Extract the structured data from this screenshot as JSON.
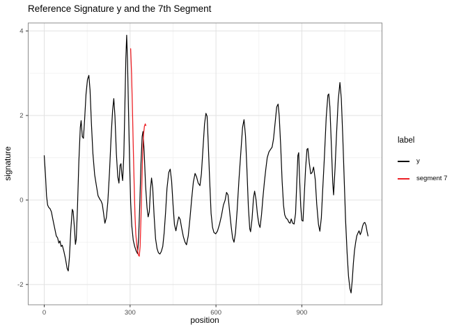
{
  "chart_data": {
    "type": "line",
    "title": "Reference Signature y and the 7th Segment",
    "xlabel": "position",
    "ylabel": "signature",
    "xlim": [
      -56,
      1180
    ],
    "ylim": [
      -2.48,
      4.19
    ],
    "x_ticks": [
      0,
      300,
      600,
      900
    ],
    "x_minor": [
      150,
      450,
      750,
      1050
    ],
    "y_ticks": [
      -2,
      0,
      2,
      4
    ],
    "y_minor": [
      -1,
      1,
      3
    ],
    "grid": "on",
    "legend_position": "right",
    "legend": {
      "title": "label",
      "entries": [
        {
          "label": "y",
          "color": "#000000"
        },
        {
          "label": "segment 7",
          "color": "#EC2025"
        }
      ]
    },
    "colors": {
      "major_grid": "#e2e2e2",
      "minor_grid": "#f0f0f0",
      "panel_border": "#8c8c8c",
      "tick_mark": "#333333",
      "tick_label": "#4d4d4d"
    },
    "series": [
      {
        "name": "y",
        "color": "#000000",
        "width": 1.2,
        "points": [
          [
            0,
            1.05
          ],
          [
            4,
            0.62
          ],
          [
            8,
            0.1
          ],
          [
            12,
            -0.12
          ],
          [
            16,
            -0.18
          ],
          [
            20,
            -0.2
          ],
          [
            25,
            -0.28
          ],
          [
            30,
            -0.45
          ],
          [
            36,
            -0.65
          ],
          [
            42,
            -0.85
          ],
          [
            47,
            -0.9
          ],
          [
            51,
            -1.02
          ],
          [
            55,
            -0.97
          ],
          [
            59,
            -1.1
          ],
          [
            63,
            -1.07
          ],
          [
            68,
            -1.2
          ],
          [
            74,
            -1.38
          ],
          [
            80,
            -1.62
          ],
          [
            84,
            -1.68
          ],
          [
            88,
            -1.35
          ],
          [
            93,
            -0.7
          ],
          [
            98,
            -0.22
          ],
          [
            101,
            -0.27
          ],
          [
            105,
            -0.62
          ],
          [
            109,
            -1.05
          ],
          [
            112,
            -0.93
          ],
          [
            116,
            -0.2
          ],
          [
            121,
            0.9
          ],
          [
            126,
            1.72
          ],
          [
            129,
            1.88
          ],
          [
            133,
            1.5
          ],
          [
            137,
            1.46
          ],
          [
            141,
            1.9
          ],
          [
            146,
            2.5
          ],
          [
            151,
            2.85
          ],
          [
            156,
            2.95
          ],
          [
            160,
            2.6
          ],
          [
            165,
            1.8
          ],
          [
            170,
            1.1
          ],
          [
            176,
            0.6
          ],
          [
            182,
            0.35
          ],
          [
            188,
            0.1
          ],
          [
            194,
            0.02
          ],
          [
            199,
            -0.03
          ],
          [
            203,
            -0.1
          ],
          [
            207,
            -0.3
          ],
          [
            212,
            -0.55
          ],
          [
            217,
            -0.42
          ],
          [
            222,
            -0.05
          ],
          [
            228,
            0.65
          ],
          [
            234,
            1.55
          ],
          [
            239,
            2.12
          ],
          [
            243,
            2.4
          ],
          [
            247,
            2.0
          ],
          [
            252,
            1.1
          ],
          [
            257,
            0.55
          ],
          [
            261,
            0.4
          ],
          [
            265,
            0.82
          ],
          [
            268,
            0.86
          ],
          [
            271,
            0.62
          ],
          [
            274,
            0.46
          ],
          [
            278,
            1.05
          ],
          [
            282,
            2.3
          ],
          [
            285,
            3.35
          ],
          [
            288,
            3.9
          ],
          [
            291,
            3.3
          ],
          [
            294,
            2.2
          ],
          [
            298,
            0.95
          ],
          [
            302,
            -0.05
          ],
          [
            306,
            -0.62
          ],
          [
            311,
            -0.95
          ],
          [
            316,
            -1.1
          ],
          [
            321,
            -1.2
          ],
          [
            326,
            -1.27
          ],
          [
            330,
            -0.88
          ],
          [
            334,
            -0.05
          ],
          [
            338,
            0.85
          ],
          [
            342,
            1.5
          ],
          [
            345,
            1.62
          ],
          [
            349,
            1.15
          ],
          [
            354,
            0.35
          ],
          [
            359,
            -0.18
          ],
          [
            363,
            -0.4
          ],
          [
            367,
            -0.28
          ],
          [
            371,
            0.25
          ],
          [
            375,
            0.52
          ],
          [
            379,
            0.28
          ],
          [
            384,
            -0.38
          ],
          [
            389,
            -0.92
          ],
          [
            394,
            -1.15
          ],
          [
            399,
            -1.25
          ],
          [
            404,
            -1.28
          ],
          [
            409,
            -1.22
          ],
          [
            414,
            -1.1
          ],
          [
            419,
            -0.78
          ],
          [
            424,
            -0.28
          ],
          [
            429,
            0.28
          ],
          [
            435,
            0.65
          ],
          [
            440,
            0.73
          ],
          [
            445,
            0.45
          ],
          [
            450,
            -0.12
          ],
          [
            455,
            -0.58
          ],
          [
            460,
            -0.73
          ],
          [
            465,
            -0.55
          ],
          [
            470,
            -0.4
          ],
          [
            475,
            -0.46
          ],
          [
            480,
            -0.66
          ],
          [
            486,
            -0.87
          ],
          [
            492,
            -1.0
          ],
          [
            497,
            -1.06
          ],
          [
            503,
            -0.85
          ],
          [
            509,
            -0.45
          ],
          [
            515,
            0.02
          ],
          [
            521,
            0.42
          ],
          [
            527,
            0.63
          ],
          [
            532,
            0.55
          ],
          [
            538,
            0.4
          ],
          [
            544,
            0.34
          ],
          [
            549,
            0.62
          ],
          [
            554,
            1.15
          ],
          [
            560,
            1.8
          ],
          [
            565,
            2.05
          ],
          [
            569,
            1.98
          ],
          [
            573,
            1.35
          ],
          [
            578,
            0.45
          ],
          [
            583,
            -0.32
          ],
          [
            588,
            -0.65
          ],
          [
            593,
            -0.77
          ],
          [
            599,
            -0.8
          ],
          [
            605,
            -0.74
          ],
          [
            612,
            -0.58
          ],
          [
            619,
            -0.38
          ],
          [
            626,
            -0.12
          ],
          [
            632,
            0.0
          ],
          [
            637,
            0.18
          ],
          [
            642,
            0.12
          ],
          [
            647,
            -0.22
          ],
          [
            653,
            -0.62
          ],
          [
            658,
            -0.9
          ],
          [
            663,
            -1.0
          ],
          [
            668,
            -0.78
          ],
          [
            674,
            -0.25
          ],
          [
            680,
            0.45
          ],
          [
            687,
            1.15
          ],
          [
            693,
            1.72
          ],
          [
            698,
            1.9
          ],
          [
            703,
            1.52
          ],
          [
            708,
            0.75
          ],
          [
            713,
            -0.15
          ],
          [
            718,
            -0.68
          ],
          [
            721,
            -0.75
          ],
          [
            726,
            -0.45
          ],
          [
            731,
            0.05
          ],
          [
            735,
            0.21
          ],
          [
            740,
            0.0
          ],
          [
            745,
            -0.35
          ],
          [
            750,
            -0.58
          ],
          [
            754,
            -0.65
          ],
          [
            759,
            -0.35
          ],
          [
            764,
            0.05
          ],
          [
            769,
            0.42
          ],
          [
            774,
            0.72
          ],
          [
            779,
            1.0
          ],
          [
            785,
            1.14
          ],
          [
            791,
            1.2
          ],
          [
            796,
            1.25
          ],
          [
            801,
            1.44
          ],
          [
            807,
            1.85
          ],
          [
            812,
            2.2
          ],
          [
            817,
            2.27
          ],
          [
            821,
            2.0
          ],
          [
            826,
            1.3
          ],
          [
            831,
            0.45
          ],
          [
            836,
            -0.12
          ],
          [
            840,
            -0.35
          ],
          [
            845,
            -0.43
          ],
          [
            850,
            -0.46
          ],
          [
            855,
            -0.53
          ],
          [
            859,
            -0.55
          ],
          [
            863,
            -0.45
          ],
          [
            868,
            -0.55
          ],
          [
            873,
            -0.57
          ],
          [
            878,
            -0.32
          ],
          [
            882,
            0.35
          ],
          [
            886,
            1.05
          ],
          [
            889,
            1.12
          ],
          [
            892,
            0.55
          ],
          [
            896,
            -0.15
          ],
          [
            900,
            -0.48
          ],
          [
            904,
            -0.5
          ],
          [
            908,
            0.05
          ],
          [
            913,
            0.75
          ],
          [
            918,
            1.2
          ],
          [
            921,
            1.22
          ],
          [
            926,
            0.88
          ],
          [
            931,
            0.62
          ],
          [
            936,
            0.65
          ],
          [
            941,
            0.78
          ],
          [
            947,
            0.48
          ],
          [
            952,
            -0.1
          ],
          [
            958,
            -0.58
          ],
          [
            963,
            -0.74
          ],
          [
            968,
            -0.42
          ],
          [
            973,
            0.25
          ],
          [
            979,
            1.05
          ],
          [
            985,
            1.95
          ],
          [
            991,
            2.48
          ],
          [
            994,
            2.51
          ],
          [
            998,
            2.2
          ],
          [
            1003,
            1.3
          ],
          [
            1008,
            0.4
          ],
          [
            1011,
            0.12
          ],
          [
            1016,
            0.75
          ],
          [
            1021,
            1.55
          ],
          [
            1027,
            2.35
          ],
          [
            1033,
            2.78
          ],
          [
            1038,
            2.4
          ],
          [
            1043,
            1.5
          ],
          [
            1048,
            0.5
          ],
          [
            1053,
            -0.5
          ],
          [
            1058,
            -1.25
          ],
          [
            1063,
            -1.8
          ],
          [
            1068,
            -2.1
          ],
          [
            1072,
            -2.2
          ],
          [
            1076,
            -1.9
          ],
          [
            1080,
            -1.5
          ],
          [
            1084,
            -1.2
          ],
          [
            1088,
            -1.0
          ],
          [
            1092,
            -0.85
          ],
          [
            1096,
            -0.78
          ],
          [
            1100,
            -0.73
          ],
          [
            1104,
            -0.82
          ],
          [
            1108,
            -0.75
          ],
          [
            1112,
            -0.62
          ],
          [
            1116,
            -0.55
          ],
          [
            1120,
            -0.53
          ],
          [
            1124,
            -0.6
          ],
          [
            1128,
            -0.75
          ],
          [
            1131,
            -0.85
          ]
        ]
      },
      {
        "name": "segment 7",
        "color": "#EC2025",
        "width": 1.3,
        "points": [
          [
            302,
            3.58
          ],
          [
            305,
            3.0
          ],
          [
            308,
            2.2
          ],
          [
            311,
            1.3
          ],
          [
            314,
            0.4
          ],
          [
            317,
            -0.35
          ],
          [
            320,
            -0.8
          ],
          [
            323,
            -1.05
          ],
          [
            326,
            -1.2
          ],
          [
            329,
            -1.3
          ],
          [
            332,
            -1.33
          ],
          [
            335,
            -1.1
          ],
          [
            338,
            -0.45
          ],
          [
            341,
            0.4
          ],
          [
            344,
            1.1
          ],
          [
            347,
            1.55
          ],
          [
            350,
            1.75
          ],
          [
            353,
            1.8
          ],
          [
            355,
            1.76
          ]
        ]
      }
    ]
  }
}
